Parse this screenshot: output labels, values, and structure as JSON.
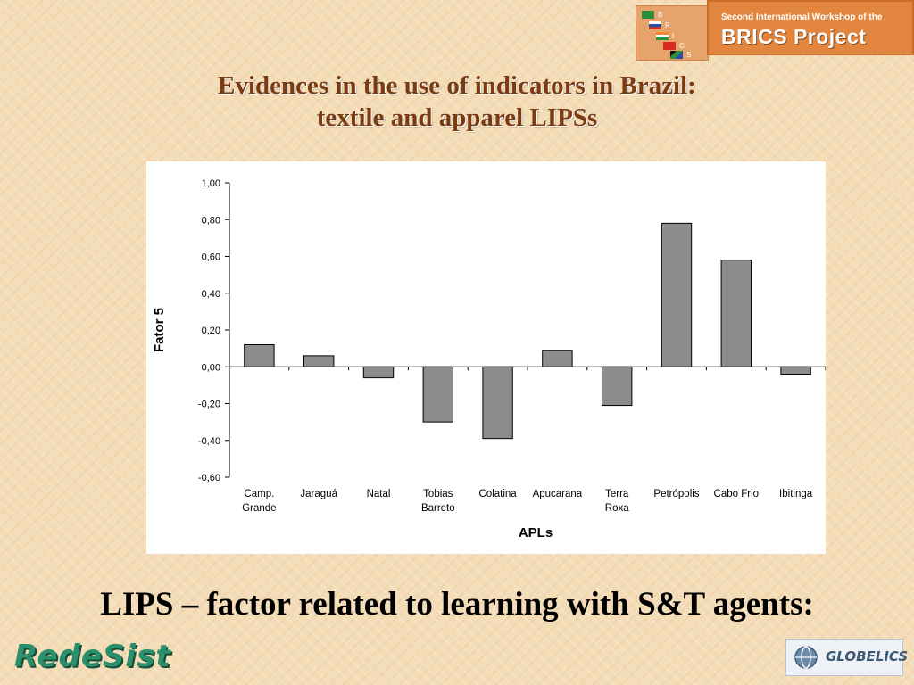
{
  "banner": {
    "workshop_label": "Second International Workshop of the",
    "project_label": "BRICS Project",
    "flag_letters": [
      "B",
      "R",
      "I",
      "C",
      "S"
    ]
  },
  "slide": {
    "title_line1": "Evidences in the use of indicators in Brazil:",
    "title_line2": "textile and apparel LIPSs",
    "subtitle": "LIPS – factor related to learning with S&T agents:"
  },
  "footer": {
    "left_logo_text": "RedeSist",
    "right_logo_text": "GLOBELICS"
  },
  "colors": {
    "title": "#7a3a12",
    "bar_fill": "#8c8c8c",
    "bar_stroke": "#000000",
    "banner_orange": "#e1853f"
  },
  "chart_data": {
    "type": "bar",
    "categories": [
      [
        "Camp.",
        "Grande"
      ],
      [
        "Jaraguá"
      ],
      [
        "Natal"
      ],
      [
        "Tobias",
        "Barreto"
      ],
      [
        "Colatina"
      ],
      [
        "Apucarana"
      ],
      [
        "Terra",
        "Roxa"
      ],
      [
        "Petrópolis"
      ],
      [
        "Cabo Frio"
      ],
      [
        "Ibitinga"
      ]
    ],
    "values": [
      0.12,
      0.06,
      -0.06,
      -0.3,
      -0.39,
      0.09,
      -0.21,
      0.78,
      0.58,
      -0.04
    ],
    "ylim": [
      -0.6,
      1.0
    ],
    "yticks": [
      1.0,
      0.8,
      0.6,
      0.4,
      0.2,
      0.0,
      -0.2,
      -0.4,
      -0.6
    ],
    "ytick_labels": [
      "1,00",
      "0,80",
      "0,60",
      "0,40",
      "0,20",
      "0,00",
      "-0,20",
      "-0,40",
      "-0,60"
    ],
    "xlabel": "APLs",
    "ylabel": "Fator 5",
    "grid": false,
    "legend": "none"
  }
}
